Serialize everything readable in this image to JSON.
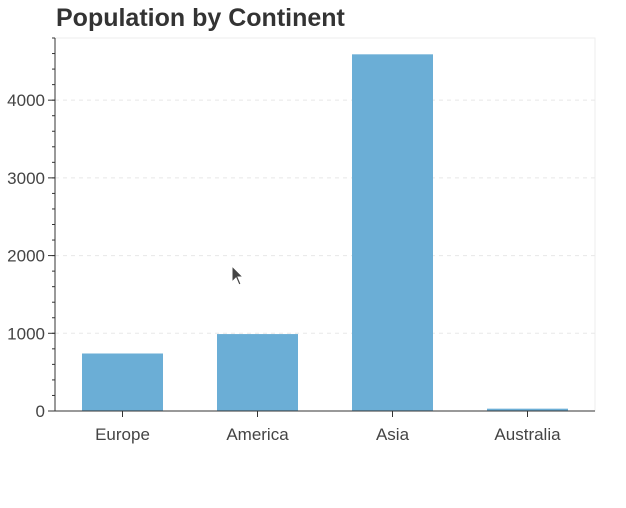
{
  "chart_data": {
    "type": "bar",
    "title": "Population by Continent",
    "xlabel": "",
    "ylabel": "",
    "categories": [
      "Europe",
      "America",
      "Asia",
      "Australia"
    ],
    "values": [
      740,
      990,
      4590,
      30
    ],
    "ylim": [
      0,
      4800
    ],
    "yticks": [
      0,
      1000,
      2000,
      3000,
      4000
    ],
    "grid": true,
    "legend": "none",
    "bar_color": "#6baed6"
  }
}
